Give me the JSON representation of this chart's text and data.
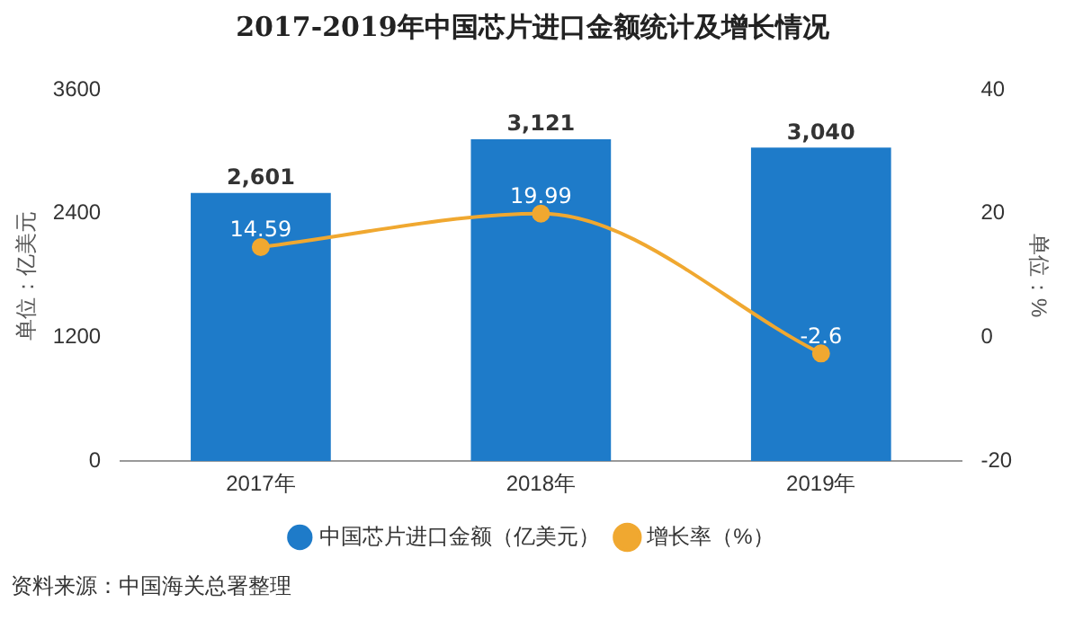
{
  "chart_data": {
    "type": "bar",
    "title": "2017-2019年中国芯片进口金额统计及增长情况",
    "ylabel": "单位：亿美元",
    "y2label": "单位：%",
    "categories": [
      "2017年",
      "2018年",
      "2019年"
    ],
    "series": [
      {
        "name": "中国芯片进口金额（亿美元）",
        "color": "#1e7bc9",
        "values": [
          2601,
          3121,
          3040
        ],
        "value_labels": [
          "2,601",
          "3,121",
          "3,040"
        ]
      },
      {
        "name": "增长率（%）",
        "type": "line",
        "axis": "y2",
        "color": "#f0a830",
        "values": [
          14.59,
          19.99,
          -2.6
        ],
        "value_labels": [
          "14.59",
          "19.99",
          "-2.6"
        ]
      }
    ],
    "ylim": [
      0,
      3600
    ],
    "yticks": [
      0,
      1200,
      2400,
      3600
    ],
    "y2lim": [
      -20,
      40
    ],
    "y2ticks": [
      -20,
      0,
      20,
      40
    ],
    "grid": false,
    "legend": "bottom",
    "marker": "circle",
    "annotations": [
      "资料来源：中国海关总署整理"
    ]
  }
}
